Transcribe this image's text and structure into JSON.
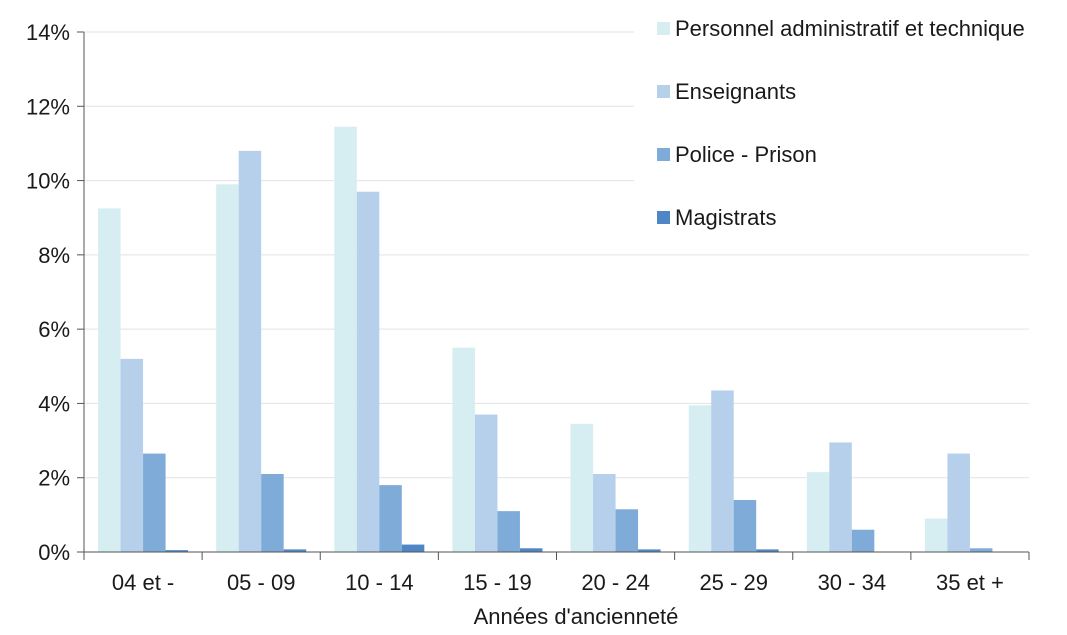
{
  "chart_data": {
    "type": "bar",
    "xlabel": "Années d'ancienneté",
    "ylabel": "",
    "ylim": [
      0,
      14
    ],
    "yticks": [
      "0%",
      "2%",
      "4%",
      "6%",
      "8%",
      "10%",
      "12%",
      "14%"
    ],
    "ytick_values": [
      0,
      2,
      4,
      6,
      8,
      10,
      12,
      14
    ],
    "grid": true,
    "legend_placement": "top-right",
    "categories": [
      "04 et -",
      "05 - 09",
      "10 - 14",
      "15 - 19",
      "20 - 24",
      "25 - 29",
      "30 - 34",
      "35 et +"
    ],
    "series": [
      {
        "name": "Personnel administratif et technique",
        "color": "#d6edf2",
        "values": [
          9.25,
          9.9,
          11.45,
          5.5,
          3.45,
          3.95,
          2.15,
          0.9
        ]
      },
      {
        "name": "Enseignants",
        "color": "#b6cfeb",
        "values": [
          5.2,
          10.8,
          9.7,
          3.7,
          2.1,
          4.35,
          2.95,
          2.65
        ]
      },
      {
        "name": "Police - Prison",
        "color": "#7fabd9",
        "values": [
          2.65,
          2.1,
          1.8,
          1.1,
          1.15,
          1.4,
          0.6,
          0.1
        ]
      },
      {
        "name": "Magistrats",
        "color": "#4f86c5",
        "values": [
          0.05,
          0.07,
          0.2,
          0.1,
          0.07,
          0.07,
          0.0,
          0.0
        ]
      }
    ]
  }
}
